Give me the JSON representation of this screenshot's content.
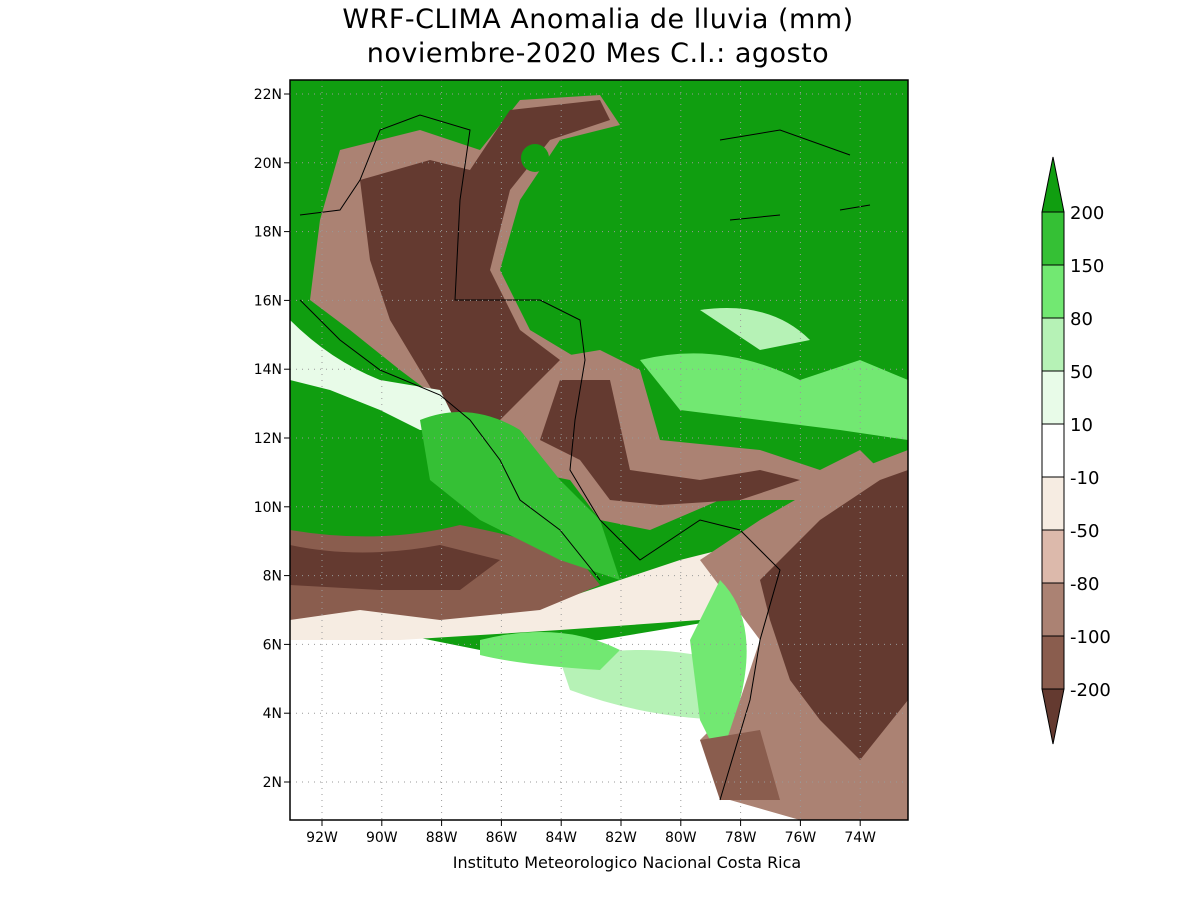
{
  "title": {
    "line1": "WRF-CLIMA Anomalia de lluvia (mm)",
    "line2": "noviembre-2020 Mes C.I.: agosto"
  },
  "lat_ticks": [
    "22N",
    "20N",
    "18N",
    "16N",
    "14N",
    "12N",
    "10N",
    "8N",
    "6N",
    "4N",
    "2N"
  ],
  "lon_ticks": [
    "92W",
    "90W",
    "88W",
    "86W",
    "84W",
    "82W",
    "80W",
    "78W",
    "76W",
    "74W"
  ],
  "colorbar": {
    "labels": [
      "200",
      "150",
      "80",
      "50",
      "10",
      "-10",
      "-50",
      "-80",
      "-100",
      "-200"
    ],
    "colors": [
      "#109e10",
      "#35c035",
      "#72e872",
      "#b6f2b6",
      "#e8fbe8",
      "#ffffff",
      "#f6ece2",
      "#dcb9ab",
      "#ab8273",
      "#8a5d4e",
      "#643a30"
    ]
  },
  "credit": "Instituto Meteorologico Nacional Costa Rica"
}
